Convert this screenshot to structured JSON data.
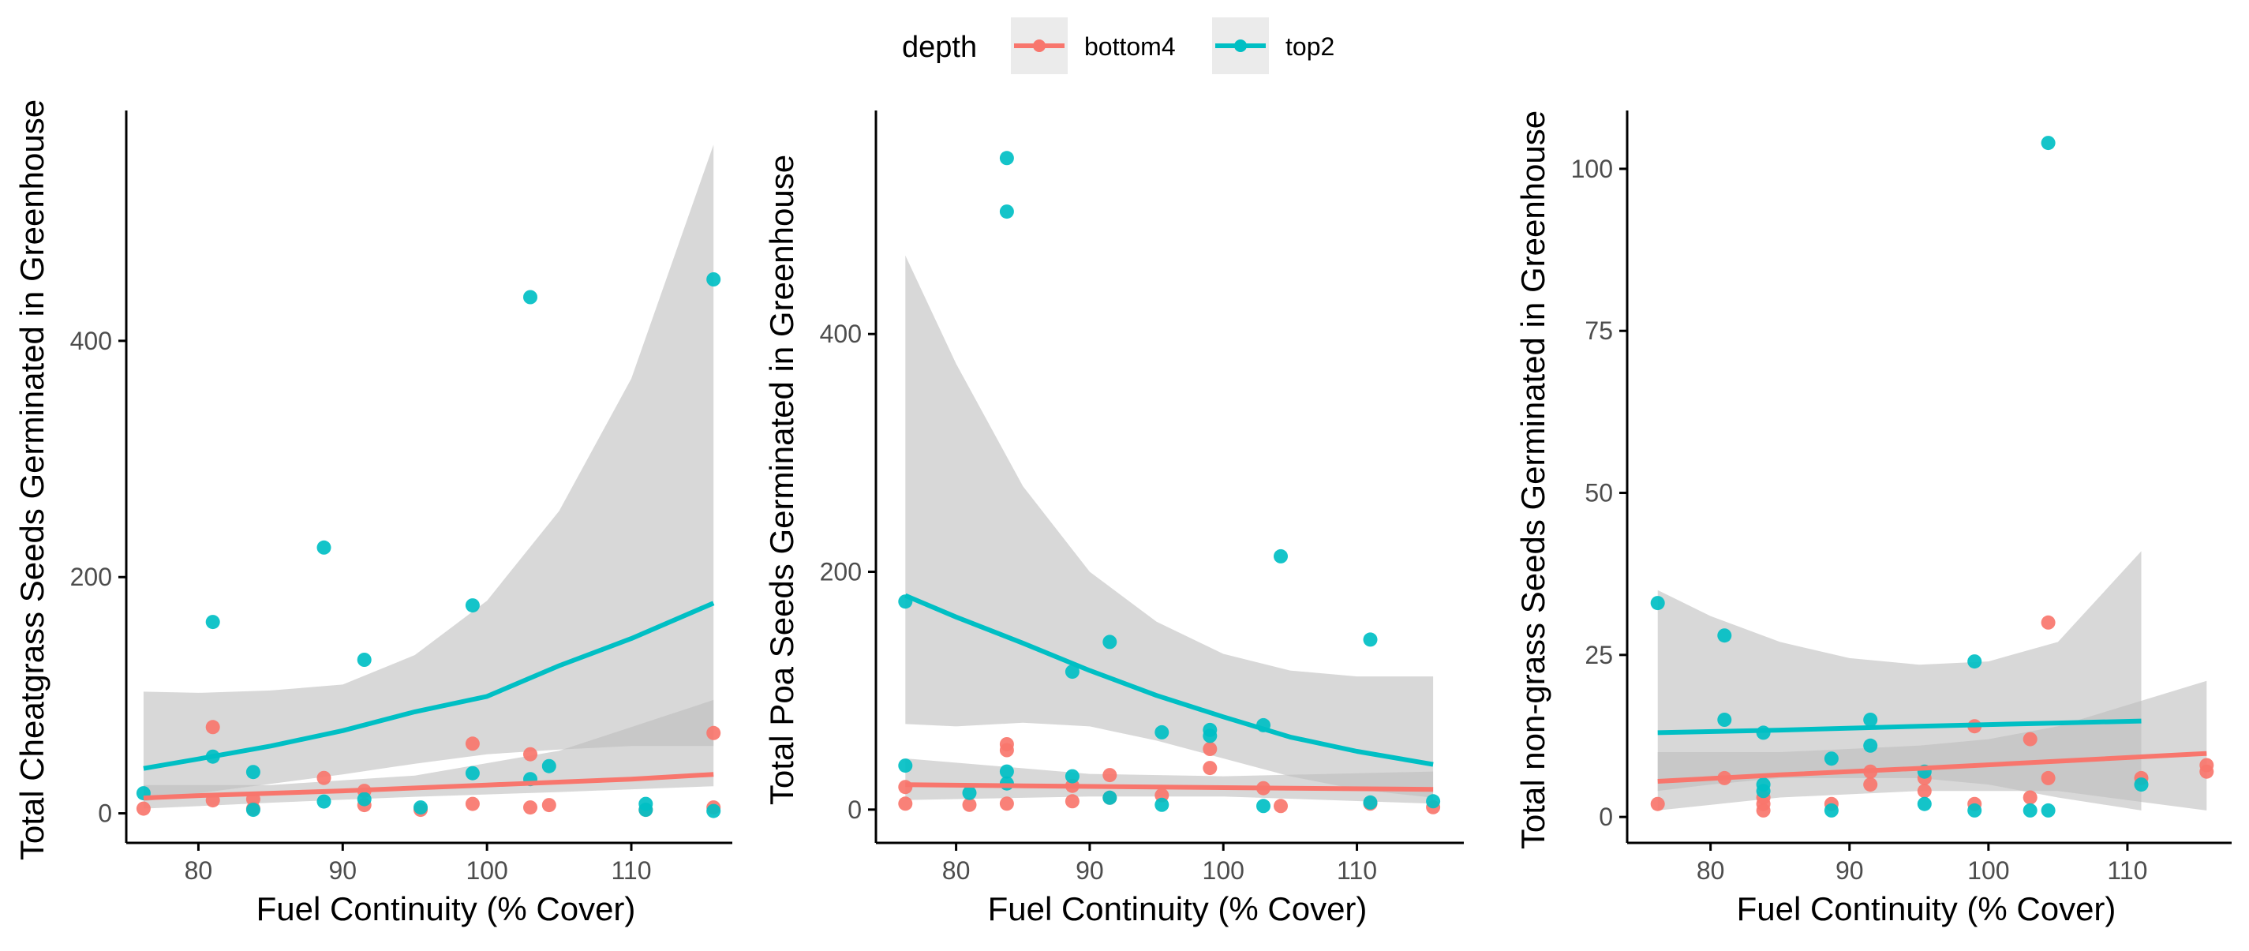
{
  "legend": {
    "title": "depth",
    "entries": [
      {
        "label": "bottom4",
        "color": "#F8766D"
      },
      {
        "label": "top2",
        "color": "#00BFC4"
      }
    ]
  },
  "colors": {
    "bottom4": "#F8766D",
    "top2": "#00BFC4",
    "ribbon": "#BEBEBE",
    "axis": "#000000",
    "tick_text": "#4D4D4D"
  },
  "chart_data": [
    {
      "type": "scatter",
      "xlabel": "Fuel Continuity (% Cover)",
      "ylabel": "Total Cheatgrass Seeds Germinated in Greenhouse",
      "xlim": [
        75,
        117
      ],
      "ylim": [
        -25,
        595
      ],
      "xticks": [
        80,
        90,
        100,
        110
      ],
      "yticks": [
        0,
        200,
        400
      ],
      "series": [
        {
          "name": "bottom4",
          "points": [
            [
              76.2,
              4
            ],
            [
              81,
              11
            ],
            [
              81,
              73
            ],
            [
              83.8,
              4
            ],
            [
              83.8,
              12
            ],
            [
              88.7,
              30
            ],
            [
              91.5,
              7
            ],
            [
              91.5,
              19
            ],
            [
              95.4,
              3
            ],
            [
              99,
              8
            ],
            [
              99,
              59
            ],
            [
              103,
              5
            ],
            [
              103,
              50
            ],
            [
              104.3,
              7
            ],
            [
              111,
              3
            ],
            [
              115.7,
              5
            ],
            [
              115.7,
              68
            ]
          ],
          "fit": [
            [
              76.2,
              13
            ],
            [
              80,
              15
            ],
            [
              90,
              19
            ],
            [
              100,
              24
            ],
            [
              110,
              29
            ],
            [
              115.7,
              33
            ]
          ],
          "band_low": [
            [
              76.2,
              4
            ],
            [
              85,
              9
            ],
            [
              95,
              14
            ],
            [
              105,
              18
            ],
            [
              115.7,
              23
            ]
          ],
          "band_high": [
            [
              76.2,
              24
            ],
            [
              85,
              24
            ],
            [
              95,
              32
            ],
            [
              105,
              53
            ],
            [
              115.7,
              96
            ]
          ]
        },
        {
          "name": "top2",
          "points": [
            [
              76.2,
              17
            ],
            [
              81,
              162
            ],
            [
              81,
              48
            ],
            [
              83.8,
              35
            ],
            [
              83.8,
              3
            ],
            [
              88.7,
              225
            ],
            [
              88.7,
              10
            ],
            [
              91.5,
              130
            ],
            [
              91.5,
              12
            ],
            [
              95.4,
              5
            ],
            [
              99,
              176
            ],
            [
              99,
              34
            ],
            [
              103,
              437
            ],
            [
              103,
              29
            ],
            [
              104.3,
              40
            ],
            [
              111,
              8
            ],
            [
              111,
              3
            ],
            [
              115.7,
              452
            ],
            [
              115.7,
              2
            ]
          ],
          "fit": [
            [
              76.2,
              38
            ],
            [
              80,
              46
            ],
            [
              85,
              57
            ],
            [
              90,
              70
            ],
            [
              95,
              86
            ],
            [
              100,
              99
            ],
            [
              105,
              125
            ],
            [
              110,
              148
            ],
            [
              115.7,
              178
            ]
          ],
          "band_low": [
            [
              76.2,
              10
            ],
            [
              80,
              17
            ],
            [
              85,
              25
            ],
            [
              90,
              33
            ],
            [
              95,
              42
            ],
            [
              100,
              50
            ],
            [
              105,
              54
            ],
            [
              110,
              57
            ],
            [
              115.7,
              57
            ]
          ],
          "band_high": [
            [
              76.2,
              103
            ],
            [
              80,
              102
            ],
            [
              85,
              104
            ],
            [
              90,
              109
            ],
            [
              95,
              134
            ],
            [
              100,
              180
            ],
            [
              105,
              256
            ],
            [
              110,
              368
            ],
            [
              115.7,
              566
            ]
          ]
        }
      ]
    },
    {
      "type": "scatter",
      "xlabel": "Fuel Continuity (% Cover)",
      "ylabel": "Total Poa Seeds Germinated in Greenhouse",
      "xlim": [
        74,
        118
      ],
      "ylim": [
        -28,
        588
      ],
      "xticks": [
        80,
        90,
        100,
        110
      ],
      "yticks": [
        0,
        200,
        400
      ],
      "series": [
        {
          "name": "bottom4",
          "points": [
            [
              76.2,
              5
            ],
            [
              76.2,
              19
            ],
            [
              81,
              4
            ],
            [
              83.8,
              55
            ],
            [
              83.8,
              50
            ],
            [
              83.8,
              5
            ],
            [
              88.7,
              20
            ],
            [
              88.7,
              7
            ],
            [
              91.5,
              29
            ],
            [
              91.5,
              10
            ],
            [
              95.4,
              12
            ],
            [
              99,
              51
            ],
            [
              99,
              35
            ],
            [
              103,
              18
            ],
            [
              104.3,
              3
            ],
            [
              111,
              5
            ],
            [
              115.7,
              2
            ]
          ],
          "fit": [
            [
              76.2,
              21
            ],
            [
              85,
              20
            ],
            [
              95,
              19
            ],
            [
              105,
              18
            ],
            [
              115.7,
              17
            ]
          ],
          "band_low": [
            [
              76.2,
              8
            ],
            [
              90,
              11
            ],
            [
              100,
              11
            ],
            [
              115.7,
              5
            ]
          ],
          "band_high": [
            [
              76.2,
              43
            ],
            [
              90,
              30
            ],
            [
              100,
              28
            ],
            [
              115.7,
              32
            ]
          ]
        },
        {
          "name": "top2",
          "points": [
            [
              76.2,
              175
            ],
            [
              76.2,
              37
            ],
            [
              81,
              14
            ],
            [
              83.8,
              548
            ],
            [
              83.8,
              503
            ],
            [
              83.8,
              32
            ],
            [
              83.8,
              22
            ],
            [
              88.7,
              116
            ],
            [
              88.7,
              28
            ],
            [
              91.5,
              141
            ],
            [
              91.5,
              10
            ],
            [
              95.4,
              65
            ],
            [
              95.4,
              4
            ],
            [
              99,
              67
            ],
            [
              99,
              62
            ],
            [
              103,
              71
            ],
            [
              103,
              3
            ],
            [
              104.3,
              213
            ],
            [
              111,
              143
            ],
            [
              111,
              6
            ],
            [
              115.7,
              7
            ]
          ],
          "fit": [
            [
              76.2,
              180
            ],
            [
              80,
              162
            ],
            [
              85,
              140
            ],
            [
              90,
              117
            ],
            [
              95,
              96
            ],
            [
              100,
              78
            ],
            [
              105,
              61
            ],
            [
              110,
              49
            ],
            [
              115.7,
              38
            ]
          ],
          "band_low": [
            [
              76.2,
              72
            ],
            [
              80,
              70
            ],
            [
              85,
              73
            ],
            [
              90,
              70
            ],
            [
              95,
              58
            ],
            [
              100,
              43
            ],
            [
              105,
              28
            ],
            [
              110,
              17
            ],
            [
              115.7,
              10
            ]
          ],
          "band_high": [
            [
              76.2,
              466
            ],
            [
              80,
              375
            ],
            [
              85,
              272
            ],
            [
              90,
              200
            ],
            [
              95,
              158
            ],
            [
              100,
              131
            ],
            [
              105,
              117
            ],
            [
              110,
              112
            ],
            [
              115.7,
              112
            ]
          ]
        }
      ]
    },
    {
      "type": "scatter",
      "xlabel": "Fuel Continuity (% Cover)",
      "ylabel": "Total non-grass Seeds Germinated in Greenhouse",
      "xlim": [
        74,
        117.5
      ],
      "ylim": [
        -4,
        109
      ],
      "xticks": [
        80,
        90,
        100,
        110
      ],
      "yticks": [
        0,
        25,
        50,
        75,
        100
      ],
      "series": [
        {
          "name": "bottom4",
          "points": [
            [
              76.2,
              2
            ],
            [
              81,
              6
            ],
            [
              83.8,
              1
            ],
            [
              83.8,
              2
            ],
            [
              83.8,
              3
            ],
            [
              88.7,
              2
            ],
            [
              91.5,
              5
            ],
            [
              91.5,
              7
            ],
            [
              95.4,
              4
            ],
            [
              95.4,
              6
            ],
            [
              99,
              2
            ],
            [
              99,
              14
            ],
            [
              103,
              3
            ],
            [
              103,
              12
            ],
            [
              104.3,
              30
            ],
            [
              104.3,
              6
            ],
            [
              111,
              6
            ],
            [
              115.7,
              7
            ],
            [
              115.7,
              8
            ]
          ],
          "fit": [
            [
              76.2,
              5.5
            ],
            [
              85,
              6.5
            ],
            [
              95,
              7.5
            ],
            [
              105,
              8.6
            ],
            [
              115.7,
              9.8
            ]
          ],
          "band_low": [
            [
              76.2,
              1
            ],
            [
              85,
              3
            ],
            [
              95,
              4
            ],
            [
              100,
              4
            ],
            [
              105,
              4
            ],
            [
              115.7,
              1
            ]
          ],
          "band_high": [
            [
              76.2,
              10
            ],
            [
              85,
              10
            ],
            [
              95,
              11
            ],
            [
              100,
              12
            ],
            [
              105,
              14
            ],
            [
              115.7,
              21
            ]
          ]
        },
        {
          "name": "top2",
          "points": [
            [
              76.2,
              33
            ],
            [
              81,
              28
            ],
            [
              81,
              15
            ],
            [
              83.8,
              13
            ],
            [
              83.8,
              5
            ],
            [
              83.8,
              4
            ],
            [
              88.7,
              9
            ],
            [
              88.7,
              1
            ],
            [
              91.5,
              15
            ],
            [
              91.5,
              11
            ],
            [
              95.4,
              7
            ],
            [
              95.4,
              2
            ],
            [
              99,
              24
            ],
            [
              99,
              1
            ],
            [
              103,
              1
            ],
            [
              104.3,
              104
            ],
            [
              104.3,
              1
            ],
            [
              111,
              5
            ]
          ],
          "fit": [
            [
              76.2,
              13
            ],
            [
              85,
              13.4
            ],
            [
              95,
              14
            ],
            [
              105,
              14.5
            ],
            [
              111,
              14.8
            ]
          ],
          "band_low": [
            [
              76.2,
              4
            ],
            [
              80,
              5
            ],
            [
              85,
              6
            ],
            [
              90,
              6
            ],
            [
              95,
              6
            ],
            [
              100,
              5
            ],
            [
              105,
              3
            ],
            [
              111,
              1
            ]
          ],
          "band_high": [
            [
              76.2,
              35
            ],
            [
              80,
              31
            ],
            [
              85,
              27
            ],
            [
              90,
              24.5
            ],
            [
              95,
              23.5
            ],
            [
              100,
              24
            ],
            [
              105,
              27
            ],
            [
              111,
              41
            ]
          ]
        }
      ]
    }
  ]
}
